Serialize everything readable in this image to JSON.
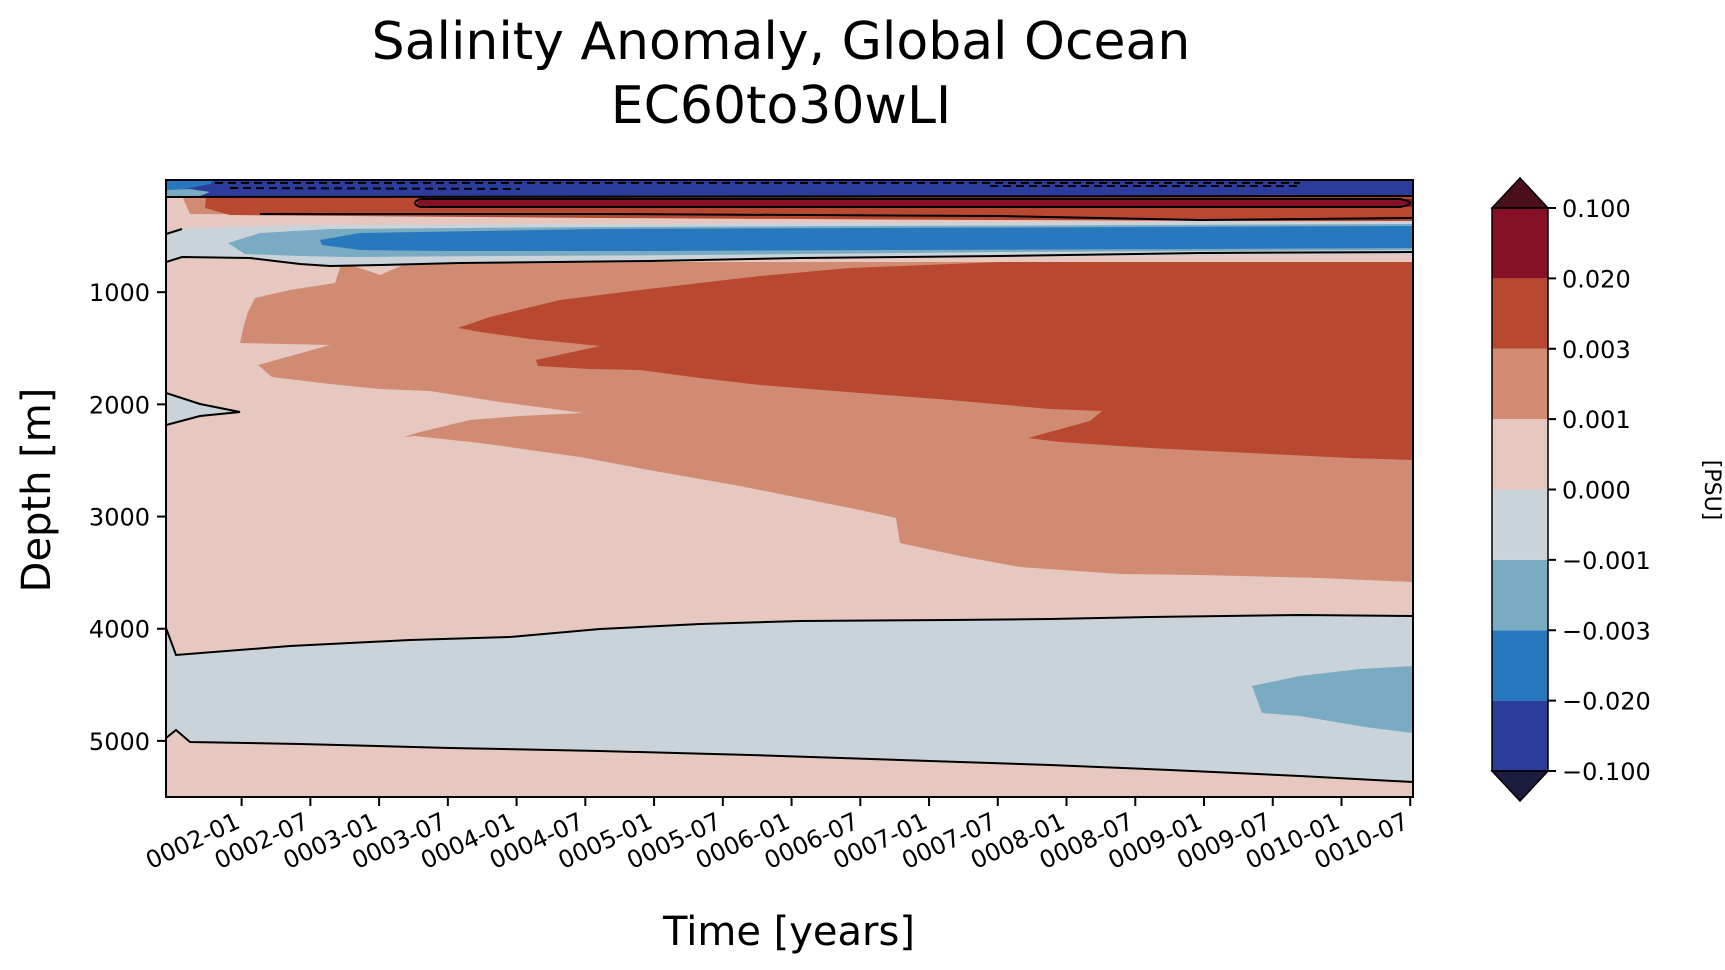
{
  "chart_data": {
    "type": "heatmap",
    "title": "Salinity Anomaly, Global Ocean",
    "subtitle": "EC60to30wLI",
    "xlabel": "Time [years]",
    "ylabel": "Depth [m]",
    "x_ticks": [
      "0002-01",
      "0002-07",
      "0003-01",
      "0003-07",
      "0004-01",
      "0004-07",
      "0005-01",
      "0005-07",
      "0006-01",
      "0006-07",
      "0007-01",
      "0007-07",
      "0008-01",
      "0008-07",
      "0009-01",
      "0009-07",
      "0010-01",
      "0010-07"
    ],
    "x_range": [
      1.45,
      10.52
    ],
    "y_ticks": [
      1000,
      2000,
      3000,
      4000,
      5000
    ],
    "y_range": [
      5500,
      0
    ],
    "y_inverted": true,
    "colorbar": {
      "label": "[PSU]",
      "levels": [
        "-0.100",
        "-0.020",
        "-0.003",
        "-0.001",
        "0.000",
        "0.001",
        "0.003",
        "0.020",
        "0.100"
      ],
      "colors": [
        "#2b3c9a",
        "#2878bd",
        "#79abc2",
        "#cbd3da",
        "#e6c8c1",
        "#d08b72",
        "#b84830",
        "#861127"
      ],
      "extend_under": "#1c1c3e",
      "extend_over": "#4a0f1a"
    },
    "regions": [
      {
        "name": "surface-fresh",
        "class": "<-0.020",
        "depth_m": [
          0,
          150
        ],
        "time": [
          1.45,
          10.52
        ]
      },
      {
        "name": "near-surface-salty",
        "class": "0.003 to 0.020",
        "depth_m": [
          150,
          350
        ],
        "time": [
          1.6,
          10.52
        ]
      },
      {
        "name": "near-surface-max",
        "class": "0.020 to 0.100",
        "depth_m": [
          170,
          260
        ],
        "time": [
          3.3,
          10.4
        ]
      },
      {
        "name": "intermediate-fresh",
        "class": "-0.020 to -0.003",
        "depth_m": [
          400,
          600
        ],
        "time": [
          2.3,
          10.52
        ]
      },
      {
        "name": "mid-depth-salty",
        "class": "0.001 to 0.020",
        "depth_m": [
          700,
          3600
        ],
        "time": [
          2.0,
          10.52
        ]
      },
      {
        "name": "deep-fresh",
        "class": "-0.001 to 0.000",
        "depth_m": [
          3900,
          5350
        ],
        "time": [
          1.45,
          10.52
        ]
      },
      {
        "name": "deep-fresh-core",
        "class": "-0.003 to -0.001",
        "depth_m": [
          4350,
          4950
        ],
        "time": [
          9.35,
          10.52
        ]
      }
    ],
    "contours": [
      {
        "level": "0.000",
        "depth_m_at_end": 700
      },
      {
        "level": "0.000",
        "depth_m_at_end": 3920
      },
      {
        "level": "0.000",
        "depth_m_at_end": 5350
      }
    ],
    "grid": false
  }
}
